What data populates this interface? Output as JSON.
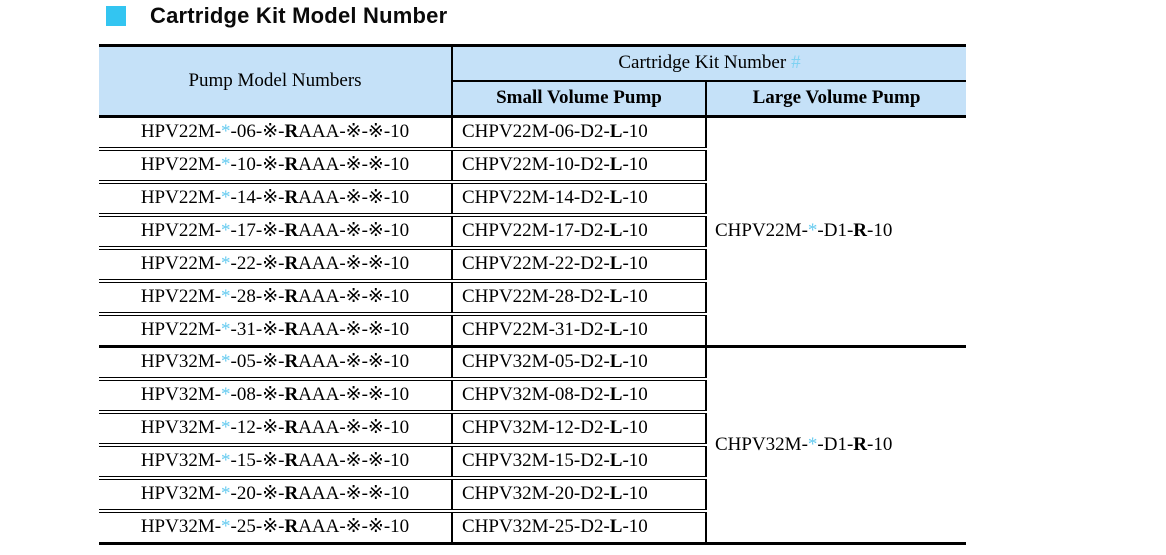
{
  "title": "Cartridge Kit Model Number",
  "colors": {
    "accent": "#33c5f1",
    "header_bg": "#c5e1f8",
    "star": "#66cbf0",
    "hash": "#7fd2f2",
    "border": "#000000",
    "text": "#000000"
  },
  "table": {
    "headers": {
      "pump": "Pump Model Numbers",
      "cartridge_kit": "Cartridge Kit Number",
      "cartridge_kit_mark": "#",
      "small": "Small Volume Pump",
      "large": "Large Volume Pump"
    },
    "groups": [
      {
        "large": "CHPV22M-*-D1-R-10",
        "rows": [
          {
            "pump": "HPV22M-*-06-※-RAAA-※-※-10",
            "small": "CHPV22M-06-D2-L-10"
          },
          {
            "pump": "HPV22M-*-10-※-RAAA-※-※-10",
            "small": "CHPV22M-10-D2-L-10"
          },
          {
            "pump": "HPV22M-*-14-※-RAAA-※-※-10",
            "small": "CHPV22M-14-D2-L-10"
          },
          {
            "pump": "HPV22M-*-17-※-RAAA-※-※-10",
            "small": "CHPV22M-17-D2-L-10"
          },
          {
            "pump": "HPV22M-*-22-※-RAAA-※-※-10",
            "small": "CHPV22M-22-D2-L-10"
          },
          {
            "pump": "HPV22M-*-28-※-RAAA-※-※-10",
            "small": "CHPV22M-28-D2-L-10"
          },
          {
            "pump": "HPV22M-*-31-※-RAAA-※-※-10",
            "small": "CHPV22M-31-D2-L-10"
          }
        ]
      },
      {
        "large": "CHPV32M-*-D1-R-10",
        "rows": [
          {
            "pump": "HPV32M-*-05-※-RAAA-※-※-10",
            "small": "CHPV32M-05-D2-L-10"
          },
          {
            "pump": "HPV32M-*-08-※-RAAA-※-※-10",
            "small": "CHPV32M-08-D2-L-10"
          },
          {
            "pump": "HPV32M-*-12-※-RAAA-※-※-10",
            "small": "CHPV32M-12-D2-L-10"
          },
          {
            "pump": "HPV32M-*-15-※-RAAA-※-※-10",
            "small": "CHPV32M-15-D2-L-10"
          },
          {
            "pump": "HPV32M-*-20-※-RAAA-※-※-10",
            "small": "CHPV32M-20-D2-L-10"
          },
          {
            "pump": "HPV32M-*-25-※-RAAA-※-※-10",
            "small": "CHPV32M-25-D2-L-10"
          }
        ]
      }
    ]
  }
}
